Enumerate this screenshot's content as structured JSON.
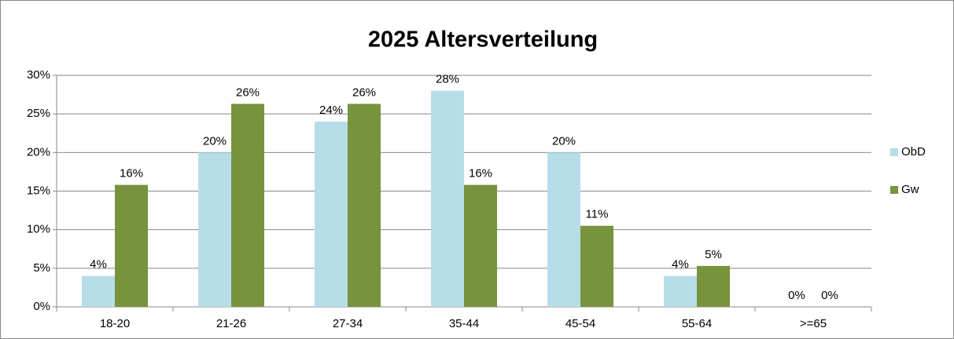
{
  "chart_data": {
    "type": "bar",
    "title": "2025 Altersverteilung",
    "categories": [
      "18-20",
      "21-26",
      "27-34",
      "35-44",
      "45-54",
      "55-64",
      ">=65"
    ],
    "series": [
      {
        "name": "ObD",
        "color": "#b7dde8",
        "values": [
          4,
          20,
          24,
          28,
          20,
          4,
          0
        ],
        "value_labels": [
          "4%",
          "20%",
          "24%",
          "28%",
          "20%",
          "4%",
          "0%"
        ]
      },
      {
        "name": "Gw",
        "color": "#77933c",
        "values": [
          15.8,
          26.3,
          26.3,
          15.8,
          10.5,
          5.3,
          0
        ],
        "value_labels": [
          "16%",
          "26%",
          "26%",
          "16%",
          "11%",
          "5%",
          "0%"
        ]
      }
    ],
    "ylim": [
      0,
      30
    ],
    "yticks": [
      {
        "value": 0,
        "label": "0%"
      },
      {
        "value": 5,
        "label": "5%"
      },
      {
        "value": 10,
        "label": "10%"
      },
      {
        "value": 15,
        "label": "15%"
      },
      {
        "value": 20,
        "label": "20%"
      },
      {
        "value": 25,
        "label": "25%"
      },
      {
        "value": 30,
        "label": "30%"
      }
    ],
    "grid": true,
    "legend": "right"
  }
}
